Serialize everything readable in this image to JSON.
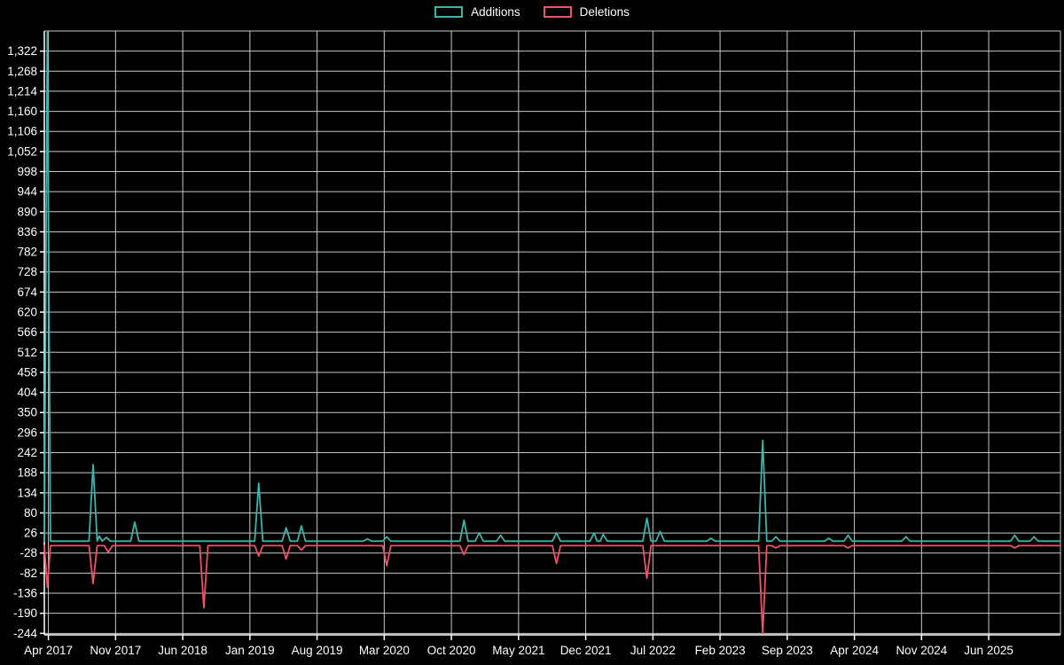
{
  "chart_data": {
    "type": "line",
    "title": "",
    "legend": [
      {
        "label": "Additions",
        "color": "#3cb4aa"
      },
      {
        "label": "Deletions",
        "color": "#ef5166"
      }
    ],
    "colors": {
      "background": "#000000",
      "grid": "#c8c8c8",
      "axis": "#ffffff",
      "text": "#ffffff"
    },
    "ylim": [
      -248,
      1376
    ],
    "grid": true,
    "legend_position": "top-center",
    "y_tick_labels": [
      "1,322",
      "1,268",
      "1,214",
      "1,160",
      "1,106",
      "1,052",
      "998",
      "944",
      "890",
      "836",
      "782",
      "728",
      "674",
      "620",
      "566",
      "512",
      "458",
      "404",
      "350",
      "296",
      "242",
      "188",
      "134",
      "80",
      "26",
      "-28",
      "-82",
      "-136",
      "-190",
      "-244"
    ],
    "x_tick_labels": [
      "Apr 2017",
      "Nov 2017",
      "Jun 2018",
      "Jan 2019",
      "Aug 2019",
      "Mar 2020",
      "Oct 2020",
      "May 2021",
      "Dec 2021",
      "Jul 2022",
      "Feb 2023",
      "Sep 2023",
      "Apr 2024",
      "Nov 2024",
      "Jun 2025"
    ],
    "series": [
      {
        "name": "Additions",
        "color": "#3cb4aa",
        "points": [
          [
            0.0,
            4
          ],
          [
            0.003,
            1376
          ],
          [
            0.006,
            4
          ],
          [
            0.044,
            4
          ],
          [
            0.048,
            210
          ],
          [
            0.052,
            4
          ],
          [
            0.054,
            18
          ],
          [
            0.057,
            4
          ],
          [
            0.061,
            14
          ],
          [
            0.065,
            4
          ],
          [
            0.085,
            4
          ],
          [
            0.089,
            55
          ],
          [
            0.093,
            4
          ],
          [
            0.207,
            4
          ],
          [
            0.211,
            160
          ],
          [
            0.215,
            4
          ],
          [
            0.234,
            4
          ],
          [
            0.238,
            40
          ],
          [
            0.242,
            4
          ],
          [
            0.249,
            4
          ],
          [
            0.253,
            45
          ],
          [
            0.257,
            4
          ],
          [
            0.314,
            4
          ],
          [
            0.318,
            10
          ],
          [
            0.322,
            4
          ],
          [
            0.333,
            4
          ],
          [
            0.337,
            16
          ],
          [
            0.341,
            4
          ],
          [
            0.409,
            4
          ],
          [
            0.413,
            60
          ],
          [
            0.417,
            4
          ],
          [
            0.424,
            4
          ],
          [
            0.428,
            26
          ],
          [
            0.432,
            4
          ],
          [
            0.445,
            4
          ],
          [
            0.449,
            20
          ],
          [
            0.453,
            4
          ],
          [
            0.5,
            4
          ],
          [
            0.504,
            26
          ],
          [
            0.508,
            4
          ],
          [
            0.537,
            4
          ],
          [
            0.541,
            26
          ],
          [
            0.544,
            4
          ],
          [
            0.547,
            4
          ],
          [
            0.55,
            22
          ],
          [
            0.554,
            4
          ],
          [
            0.589,
            4
          ],
          [
            0.593,
            66
          ],
          [
            0.597,
            4
          ],
          [
            0.602,
            4
          ],
          [
            0.606,
            30
          ],
          [
            0.61,
            4
          ],
          [
            0.652,
            4
          ],
          [
            0.656,
            12
          ],
          [
            0.66,
            4
          ],
          [
            0.703,
            4
          ],
          [
            0.707,
            275
          ],
          [
            0.711,
            4
          ],
          [
            0.716,
            4
          ],
          [
            0.72,
            16
          ],
          [
            0.724,
            4
          ],
          [
            0.768,
            4
          ],
          [
            0.772,
            12
          ],
          [
            0.776,
            4
          ],
          [
            0.787,
            4
          ],
          [
            0.791,
            20
          ],
          [
            0.795,
            4
          ],
          [
            0.844,
            4
          ],
          [
            0.848,
            16
          ],
          [
            0.852,
            4
          ],
          [
            0.951,
            4
          ],
          [
            0.955,
            20
          ],
          [
            0.959,
            4
          ],
          [
            0.97,
            4
          ],
          [
            0.974,
            16
          ],
          [
            0.978,
            4
          ],
          [
            1.0,
            4
          ]
        ]
      },
      {
        "name": "Deletions",
        "color": "#ef5166",
        "points": [
          [
            0.0,
            -8
          ],
          [
            0.003,
            -120
          ],
          [
            0.006,
            -8
          ],
          [
            0.044,
            -8
          ],
          [
            0.048,
            -110
          ],
          [
            0.052,
            -8
          ],
          [
            0.059,
            -8
          ],
          [
            0.063,
            -26
          ],
          [
            0.067,
            -8
          ],
          [
            0.153,
            -8
          ],
          [
            0.157,
            -175
          ],
          [
            0.161,
            -8
          ],
          [
            0.207,
            -8
          ],
          [
            0.211,
            -36
          ],
          [
            0.215,
            -8
          ],
          [
            0.234,
            -8
          ],
          [
            0.238,
            -44
          ],
          [
            0.242,
            -8
          ],
          [
            0.249,
            -8
          ],
          [
            0.253,
            -20
          ],
          [
            0.257,
            -8
          ],
          [
            0.333,
            -8
          ],
          [
            0.337,
            -62
          ],
          [
            0.341,
            -8
          ],
          [
            0.409,
            -8
          ],
          [
            0.413,
            -32
          ],
          [
            0.417,
            -8
          ],
          [
            0.5,
            -8
          ],
          [
            0.504,
            -56
          ],
          [
            0.508,
            -8
          ],
          [
            0.589,
            -8
          ],
          [
            0.593,
            -96
          ],
          [
            0.597,
            -8
          ],
          [
            0.703,
            -8
          ],
          [
            0.707,
            -244
          ],
          [
            0.711,
            -8
          ],
          [
            0.716,
            -8
          ],
          [
            0.72,
            -14
          ],
          [
            0.724,
            -8
          ],
          [
            0.787,
            -8
          ],
          [
            0.791,
            -14
          ],
          [
            0.795,
            -8
          ],
          [
            0.951,
            -8
          ],
          [
            0.955,
            -14
          ],
          [
            0.959,
            -8
          ],
          [
            1.0,
            -8
          ]
        ]
      }
    ]
  }
}
